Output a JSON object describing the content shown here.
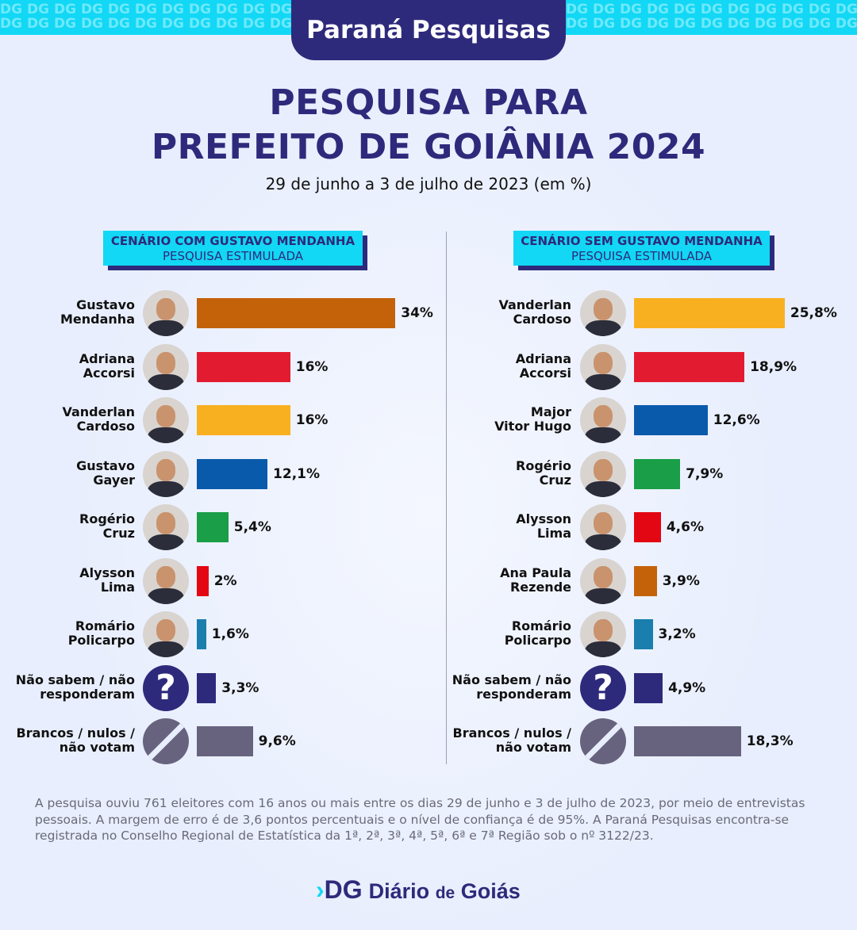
{
  "header": {
    "source": "Paraná Pesquisas",
    "title_line1": "PESQUISA PARA",
    "title_line2": "PREFEITO DE GOIÂNIA 2024",
    "subtitle": "29 de junho a 3 de julho de 2023 (em %)",
    "pattern_text": "DG DG DG DG DG DG DG DG DG DG DG DG"
  },
  "chart_data": [
    {
      "type": "bar",
      "orientation": "horizontal",
      "title": "CENÁRIO COM GUSTAVO MENDANHA",
      "subtitle": "PESQUISA ESTIMULADA",
      "categories": [
        "Gustavo\nMendanha",
        "Adriana\nAccorsi",
        "Vanderlan\nCardoso",
        "Gustavo\nGayer",
        "Rogério\nCruz",
        "Alysson\nLima",
        "Romário\nPolicarpo",
        "Não sabem / não\nresponderam",
        "Brancos / nulos /\nnão votam"
      ],
      "values": [
        34,
        16,
        16,
        12.1,
        5.4,
        2,
        1.6,
        3.3,
        9.6
      ],
      "labels": [
        "34%",
        "16%",
        "16%",
        "12,1%",
        "5,4%",
        "2%",
        "1,6%",
        "3,3%",
        "9,6%"
      ],
      "colors": [
        "#c4620a",
        "#e31b30",
        "#f9b020",
        "#0a5aab",
        "#1a9e48",
        "#e30613",
        "#1a7fae",
        "#2e2a7b",
        "#67637f"
      ],
      "icons": [
        "photo",
        "photo",
        "photo",
        "photo",
        "photo",
        "photo",
        "photo",
        "question",
        "null"
      ]
    },
    {
      "type": "bar",
      "orientation": "horizontal",
      "title": "CENÁRIO SEM GUSTAVO MENDANHA",
      "subtitle": "PESQUISA ESTIMULADA",
      "categories": [
        "Vanderlan\nCardoso",
        "Adriana\nAccorsi",
        "Major\nVitor Hugo",
        "Rogério\nCruz",
        "Alysson\nLima",
        "Ana Paula\nRezende",
        "Romário\nPolicarpo",
        "Não sabem / não\nresponderam",
        "Brancos / nulos /\nnão votam"
      ],
      "values": [
        25.8,
        18.9,
        12.6,
        7.9,
        4.6,
        3.9,
        3.2,
        4.9,
        18.3
      ],
      "labels": [
        "25,8%",
        "18,9%",
        "12,6%",
        "7,9%",
        "4,6%",
        "3,9%",
        "3,2%",
        "4,9%",
        "18,3%"
      ],
      "colors": [
        "#f9b020",
        "#e31b30",
        "#0a5aab",
        "#1a9e48",
        "#e30613",
        "#c4620a",
        "#1a7fae",
        "#2e2a7b",
        "#67637f"
      ],
      "icons": [
        "photo",
        "photo",
        "photo",
        "photo",
        "photo",
        "photo",
        "photo",
        "question",
        "null"
      ]
    }
  ],
  "footer": {
    "note": "A pesquisa ouviu 761 eleitores com 16 anos ou mais entre os dias 29 de junho e 3 de julho de 2023, por meio de entrevistas pessoais. A margem de erro é de 3,6 pontos percentuais e o nível de confiança é de 95%. A Paraná Pesquisas encontra-se registrada no Conselho Regional de Estatística da 1ª, 2ª, 3ª, 4ª, 5ª, 6ª e 7ª Região sob o nº 3122/23.",
    "logo_mark": "DG",
    "logo_name": "Diário",
    "logo_de": "de",
    "logo_place": "Goiás"
  }
}
